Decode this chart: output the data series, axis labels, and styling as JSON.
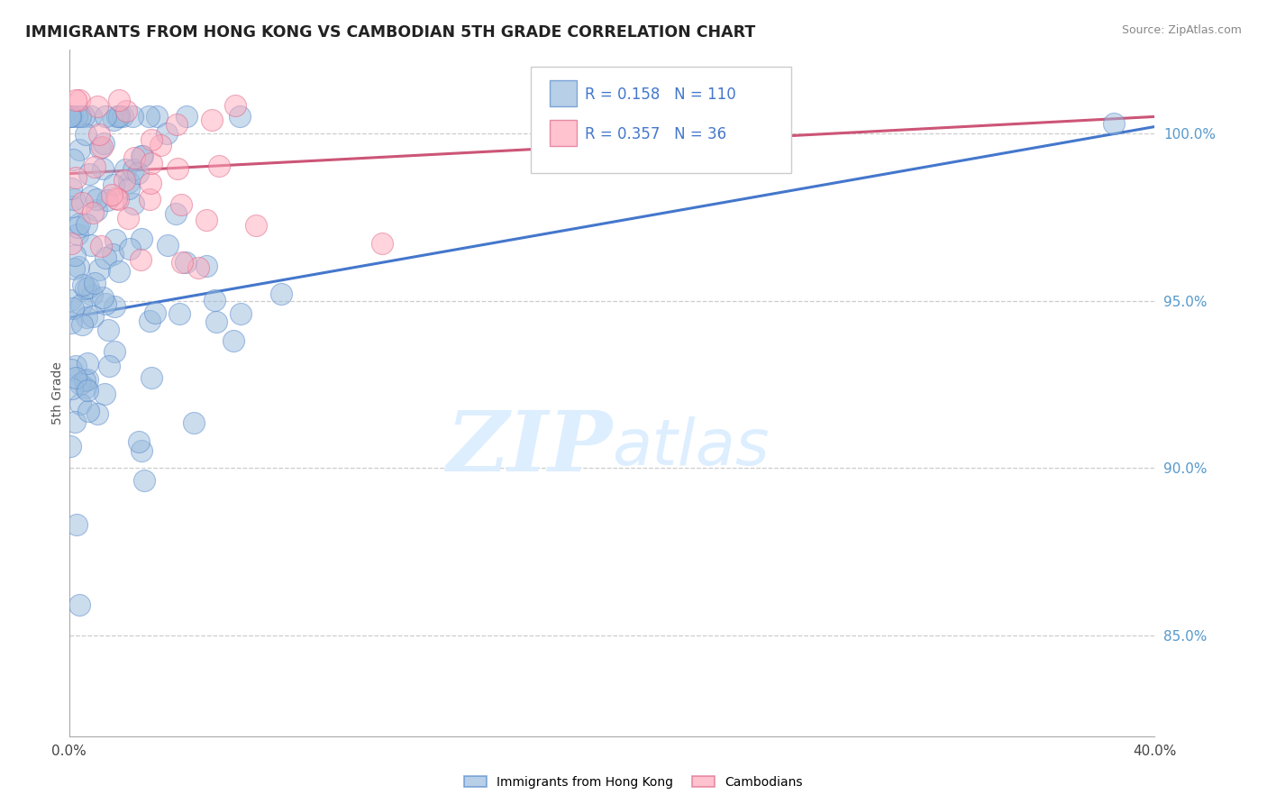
{
  "title": "IMMIGRANTS FROM HONG KONG VS CAMBODIAN 5TH GRADE CORRELATION CHART",
  "source": "Source: ZipAtlas.com",
  "ylabel": "5th Grade",
  "legend_r_blue": "R = 0.158",
  "legend_n_blue": "N = 110",
  "legend_r_pink": "R = 0.357",
  "legend_n_pink": "N = 36",
  "blue_scatter_color": "#99BBDD",
  "blue_edge_color": "#5588CC",
  "pink_scatter_color": "#FFAABB",
  "pink_edge_color": "#DD6688",
  "blue_line_color": "#4477CC",
  "pink_line_color": "#CC5577",
  "legend_text_color": "#4477CC",
  "ytick_color": "#5599CC",
  "watermark_zip": "ZIP",
  "watermark_atlas": "atlas",
  "watermark_color": "#DDEEFF",
  "background_color": "#FFFFFF",
  "legend_labels": [
    "Immigrants from Hong Kong",
    "Cambodians"
  ],
  "xmin": 0.0,
  "xmax": 0.4,
  "ymin": 82.0,
  "ymax": 102.5,
  "yticks": [
    85,
    90,
    95,
    100
  ],
  "ytick_labels": [
    "85.0%",
    "90.0%",
    "95.0%",
    "100.0%"
  ],
  "blue_line_y0": 94.5,
  "blue_line_y1": 100.2,
  "pink_line_y0": 98.8,
  "pink_line_y1": 100.5,
  "seed": 42
}
